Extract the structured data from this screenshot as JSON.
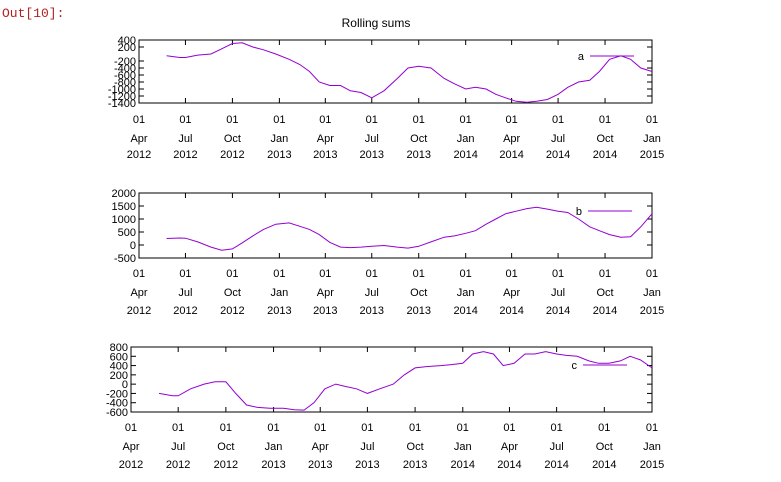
{
  "cell": {
    "prompt": "Out[10]:"
  },
  "figure": {
    "title": "Rolling sums"
  },
  "x_ticks": [
    [
      "01",
      "Apr",
      "2012"
    ],
    [
      "01",
      "Jul",
      "2012"
    ],
    [
      "01",
      "Oct",
      "2012"
    ],
    [
      "01",
      "Jan",
      "2013"
    ],
    [
      "01",
      "Apr",
      "2013"
    ],
    [
      "01",
      "Jul",
      "2013"
    ],
    [
      "01",
      "Oct",
      "2013"
    ],
    [
      "01",
      "Jan",
      "2014"
    ],
    [
      "01",
      "Apr",
      "2014"
    ],
    [
      "01",
      "Jul",
      "2014"
    ],
    [
      "01",
      "Oct",
      "2014"
    ],
    [
      "01",
      "Jan",
      "2015"
    ]
  ],
  "chart_data": [
    {
      "type": "line",
      "title": "Rolling sums",
      "series": [
        {
          "name": "a",
          "color": "#9400d3",
          "x": [
            "2012-05-25",
            "2012-06-20",
            "2012-07-01",
            "2012-07-25",
            "2012-08-20",
            "2012-09-10",
            "2012-10-01",
            "2012-10-20",
            "2012-11-10",
            "2012-12-01",
            "2012-12-25",
            "2013-01-20",
            "2013-02-10",
            "2013-03-01",
            "2013-03-20",
            "2013-04-10",
            "2013-05-01",
            "2013-05-20",
            "2013-06-10",
            "2013-07-01",
            "2013-07-25",
            "2013-08-20",
            "2013-09-10",
            "2013-10-01",
            "2013-10-25",
            "2013-11-20",
            "2013-12-10",
            "2014-01-01",
            "2014-01-20",
            "2014-02-10",
            "2014-03-01",
            "2014-03-20",
            "2014-04-10",
            "2014-05-01",
            "2014-05-20",
            "2014-06-10",
            "2014-07-01",
            "2014-07-20",
            "2014-08-10",
            "2014-09-01",
            "2014-09-20",
            "2014-10-10",
            "2014-11-01",
            "2014-11-20",
            "2014-12-10",
            "2015-01-01"
          ],
          "values": [
            -50,
            -100,
            -100,
            -30,
            0,
            150,
            300,
            320,
            200,
            120,
            0,
            -150,
            -300,
            -500,
            -800,
            -900,
            -900,
            -1050,
            -1100,
            -1250,
            -1050,
            -700,
            -400,
            -350,
            -400,
            -700,
            -850,
            -1000,
            -950,
            -1000,
            -1150,
            -1250,
            -1350,
            -1380,
            -1350,
            -1300,
            -1150,
            -950,
            -800,
            -750,
            -500,
            -150,
            -50,
            -150,
            -400,
            -500
          ]
        }
      ],
      "ylim": [
        -1400,
        400
      ],
      "yticks": [
        400,
        200,
        -200,
        -400,
        -600,
        -800,
        -1000,
        -1200,
        -1400
      ]
    },
    {
      "type": "line",
      "series": [
        {
          "name": "b",
          "color": "#9400d3",
          "x": [
            "2012-05-25",
            "2012-06-20",
            "2012-07-01",
            "2012-07-25",
            "2012-08-20",
            "2012-09-10",
            "2012-10-01",
            "2012-10-20",
            "2012-11-10",
            "2012-12-01",
            "2012-12-25",
            "2013-01-20",
            "2013-02-10",
            "2013-03-01",
            "2013-03-20",
            "2013-04-10",
            "2013-05-01",
            "2013-05-20",
            "2013-06-10",
            "2013-07-01",
            "2013-07-25",
            "2013-08-20",
            "2013-09-10",
            "2013-10-01",
            "2013-10-25",
            "2013-11-20",
            "2013-12-10",
            "2014-01-01",
            "2014-01-20",
            "2014-02-10",
            "2014-03-01",
            "2014-03-20",
            "2014-04-10",
            "2014-05-01",
            "2014-05-20",
            "2014-06-10",
            "2014-07-01",
            "2014-07-20",
            "2014-08-10",
            "2014-09-01",
            "2014-09-20",
            "2014-10-10",
            "2014-11-01",
            "2014-11-20",
            "2014-12-10",
            "2015-01-01"
          ],
          "values": [
            250,
            270,
            260,
            120,
            -80,
            -200,
            -150,
            80,
            350,
            600,
            800,
            850,
            720,
            600,
            400,
            100,
            -80,
            -100,
            -80,
            -50,
            -20,
            -80,
            -120,
            -50,
            120,
            300,
            350,
            450,
            550,
            800,
            1000,
            1200,
            1300,
            1400,
            1450,
            1380,
            1300,
            1250,
            1000,
            700,
            550,
            400,
            300,
            320,
            700,
            1200
          ]
        }
      ],
      "ylim": [
        -500,
        2000
      ],
      "yticks": [
        2000,
        1500,
        1000,
        500,
        0,
        -500
      ]
    },
    {
      "type": "line",
      "series": [
        {
          "name": "c",
          "color": "#9400d3",
          "x": [
            "2012-05-25",
            "2012-06-20",
            "2012-07-01",
            "2012-07-25",
            "2012-08-20",
            "2012-09-10",
            "2012-10-01",
            "2012-10-20",
            "2012-11-10",
            "2012-12-01",
            "2012-12-25",
            "2013-01-20",
            "2013-02-10",
            "2013-03-01",
            "2013-03-20",
            "2013-04-10",
            "2013-05-01",
            "2013-05-20",
            "2013-06-10",
            "2013-07-01",
            "2013-07-25",
            "2013-08-20",
            "2013-09-10",
            "2013-10-01",
            "2013-10-25",
            "2013-11-20",
            "2013-12-10",
            "2014-01-01",
            "2014-01-20",
            "2014-02-10",
            "2014-03-01",
            "2014-03-20",
            "2014-04-10",
            "2014-05-01",
            "2014-05-20",
            "2014-06-10",
            "2014-07-01",
            "2014-07-20",
            "2014-08-10",
            "2014-09-01",
            "2014-09-20",
            "2014-10-10",
            "2014-11-01",
            "2014-11-20",
            "2014-12-10",
            "2015-01-01"
          ],
          "values": [
            -200,
            -250,
            -250,
            -100,
            0,
            50,
            50,
            -200,
            -450,
            -500,
            -520,
            -520,
            -550,
            -560,
            -400,
            -100,
            0,
            -50,
            -100,
            -200,
            -100,
            0,
            200,
            350,
            380,
            400,
            420,
            450,
            650,
            700,
            650,
            400,
            450,
            650,
            650,
            700,
            650,
            620,
            600,
            500,
            450,
            450,
            500,
            600,
            520,
            350
          ]
        }
      ],
      "ylim": [
        -600,
        800
      ],
      "yticks": [
        800,
        600,
        400,
        200,
        0,
        -200,
        -400,
        -600
      ]
    }
  ]
}
